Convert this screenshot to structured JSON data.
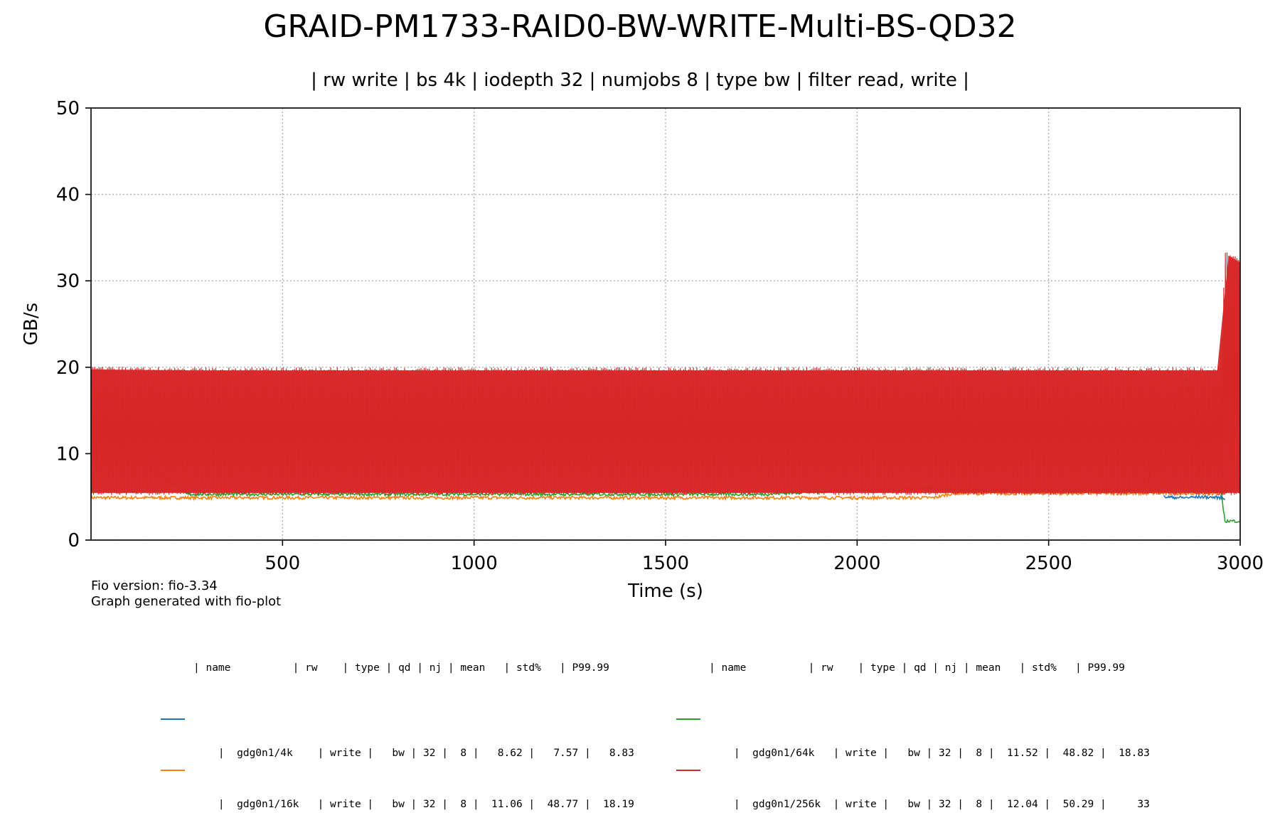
{
  "chart_data": {
    "type": "line",
    "title": "GRAID-PM1733-RAID0-BW-WRITE-Multi-BS-QD32",
    "subtitle": "| rw write | bs 4k | iodepth 32 | numjobs 8 | type bw | filter read, write |",
    "xlabel": "Time (s)",
    "ylabel": "GB/s",
    "xlim": [
      0,
      3000
    ],
    "ylim": [
      0,
      50
    ],
    "xticks": [
      500,
      1000,
      1500,
      2000,
      2500,
      3000
    ],
    "yticks": [
      0,
      10,
      20,
      30,
      40,
      50
    ],
    "grid": true,
    "series": [
      {
        "name": "gdg0n1/4k",
        "color": "#1f77b4",
        "x": [
          2800,
          2850,
          2900,
          2950,
          2960
        ],
        "y": [
          5.0,
          4.9,
          5.0,
          4.9,
          4.8
        ]
      },
      {
        "name": "gdg0n1/16k",
        "color": "#ff7f0e",
        "x": [
          0,
          250,
          500,
          750,
          1000,
          1250,
          1500,
          1750,
          2000,
          2200,
          2250,
          2500,
          2750,
          2960,
          2980,
          3000
        ],
        "y": [
          4.9,
          4.9,
          4.9,
          4.9,
          4.9,
          4.9,
          4.9,
          4.9,
          4.9,
          4.9,
          5.4,
          5.4,
          5.4,
          5.4,
          10.5,
          8.8
        ]
      },
      {
        "name": "gdg0n1/64k",
        "color": "#2ca02c",
        "x": [
          0,
          30,
          250,
          500,
          750,
          1000,
          1250,
          1500,
          1750,
          2000,
          2200,
          2250,
          2500,
          2750,
          2860,
          2900,
          2950,
          2960,
          3000
        ],
        "y": [
          5.2,
          12.5,
          5.3,
          5.3,
          5.3,
          5.3,
          5.3,
          5.3,
          5.3,
          5.8,
          6.0,
          5.8,
          5.9,
          5.8,
          19.0,
          5.8,
          5.8,
          2.2,
          2.2
        ]
      },
      {
        "name": "gdg0n1/256k",
        "color": "#d62728",
        "x": [
          0,
          250,
          500,
          750,
          1000,
          1250,
          1500,
          1750,
          2000,
          2250,
          2500,
          2750,
          2950,
          2960,
          3000
        ],
        "y": [
          20.1,
          20.0,
          20.0,
          20.0,
          20.0,
          20.0,
          20.0,
          20.0,
          20.0,
          20.0,
          20.0,
          20.0,
          20.0,
          33.5,
          32.5
        ],
        "y_low": 5.2
      }
    ],
    "legend": {
      "header": "| name          | rw    | type | qd | nj | mean   | std%   | P99.99",
      "rows": [
        "|  gdg0n1/4k    | write |   bw | 32 |  8 |   8.62 |   7.57 |   8.83",
        "|  gdg0n1/16k   | write |   bw | 32 |  8 |  11.06 |  48.77 |  18.19",
        "|  gdg0n1/64k   | write |   bw | 32 |  8 |  11.52 |  48.82 |  18.83",
        "|  gdg0n1/256k  | write |   bw | 32 |  8 |  12.04 |  50.29 |     33"
      ]
    }
  },
  "footer": {
    "line1": "Fio version: fio-3.34",
    "line2": "Graph generated with fio-plot"
  }
}
